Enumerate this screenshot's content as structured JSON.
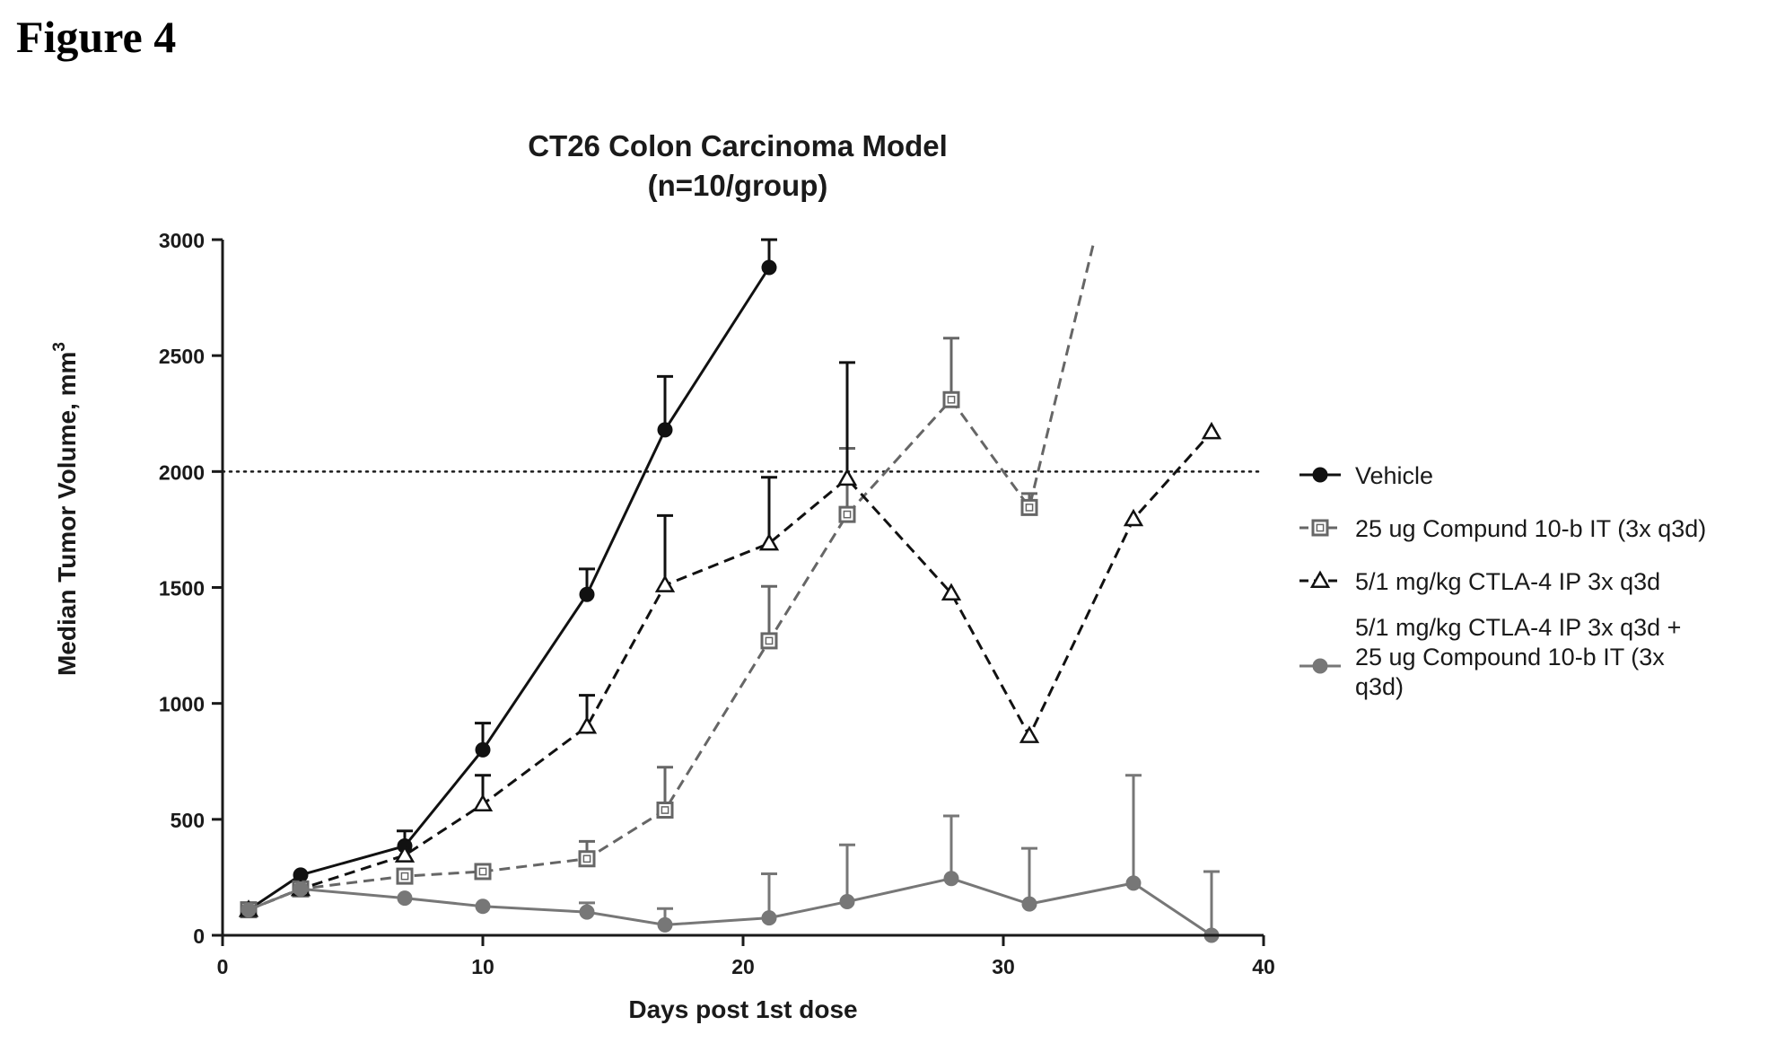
{
  "figure_label": "Figure 4",
  "chart_data": {
    "type": "line",
    "title": "CT26 Colon Carcinoma Model",
    "subtitle": "(n=10/group)",
    "xlabel": "Days post 1st dose",
    "ylabel": "Median Tumor Volume, mm",
    "ylabel_superscript": "3",
    "xlim": [
      0,
      40
    ],
    "ylim": [
      0,
      3000
    ],
    "xticks": [
      0,
      10,
      20,
      30,
      40
    ],
    "yticks": [
      0,
      500,
      1000,
      1500,
      2000,
      2500,
      3000
    ],
    "x_tick_labels": [
      "0",
      "10",
      "20",
      "30",
      "40"
    ],
    "y_tick_labels": [
      "0",
      "500",
      "1000",
      "1500",
      "2000",
      "2500",
      "3000"
    ],
    "reference_line": {
      "y": 2000,
      "style": "dotted"
    },
    "grid": false,
    "legend_position": "right",
    "series": [
      {
        "name": "Vehicle",
        "marker": "filled-circle",
        "line": "solid",
        "color": "#111111",
        "x": [
          1,
          3,
          7,
          10,
          14,
          17,
          21
        ],
        "y": [
          110,
          260,
          385,
          800,
          1470,
          2180,
          2880
        ],
        "error_upper": [
          null,
          null,
          450,
          915,
          1580,
          2410,
          3000
        ]
      },
      {
        "name": "25 ug Compund 10-b IT (3x q3d)",
        "marker": "open-square",
        "line": "dashed",
        "color": "#666666",
        "x": [
          1,
          3,
          7,
          10,
          14,
          17,
          21,
          24,
          28,
          31,
          33.5
        ],
        "y": [
          110,
          200,
          255,
          275,
          330,
          540,
          1270,
          1815,
          2310,
          1845,
          3000
        ],
        "error_upper": [
          null,
          null,
          null,
          null,
          405,
          725,
          1505,
          2100,
          2575,
          1905,
          null
        ]
      },
      {
        "name": "5/1 mg/kg CTLA-4 IP 3x q3d",
        "marker": "open-triangle",
        "line": "dashed",
        "color": "#111111",
        "x": [
          1,
          3,
          7,
          10,
          14,
          17,
          21,
          24,
          28,
          31,
          35,
          38
        ],
        "y": [
          110,
          200,
          345,
          565,
          900,
          1510,
          1690,
          1970,
          1475,
          860,
          1795,
          2170
        ],
        "error_upper": [
          null,
          null,
          null,
          690,
          1035,
          1810,
          1975,
          2470,
          null,
          null,
          null,
          null
        ]
      },
      {
        "name": "5/1 mg/kg CTLA-4 IP 3x q3d + 25 ug Compound 10-b IT (3x q3d)",
        "legend_lines": [
          "5/1 mg/kg CTLA-4 IP 3x q3d +",
          "25 ug Compound 10-b IT (3x",
          "q3d)"
        ],
        "marker": "filled-circle",
        "line": "solid",
        "color": "#777777",
        "x": [
          1,
          3,
          7,
          10,
          14,
          17,
          21,
          24,
          28,
          31,
          35,
          38
        ],
        "y": [
          110,
          200,
          160,
          125,
          100,
          45,
          75,
          145,
          245,
          135,
          225,
          0
        ],
        "error_upper": [
          null,
          null,
          null,
          null,
          140,
          115,
          265,
          390,
          515,
          375,
          690,
          275
        ]
      }
    ]
  }
}
